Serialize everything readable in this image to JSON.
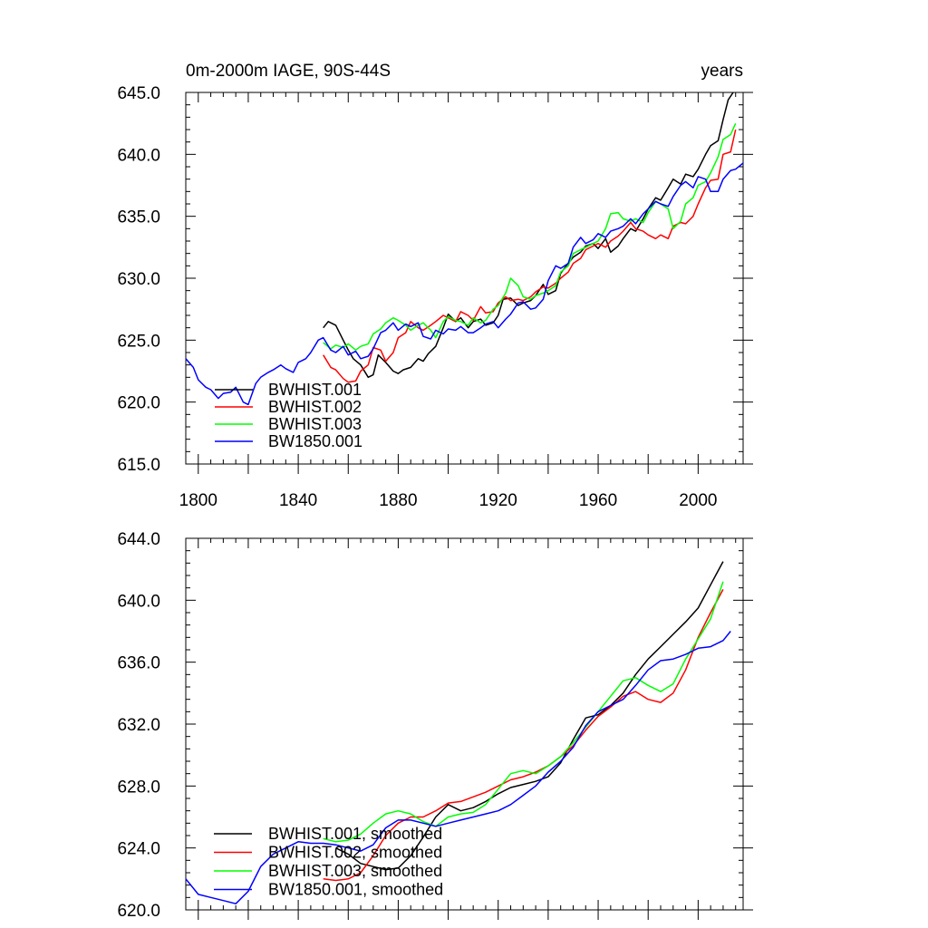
{
  "chart_data": [
    {
      "type": "line",
      "title": "0m-2000m IAGE, 90S-44S",
      "units": "years",
      "xlabel": "",
      "ylabel": "",
      "xlim": [
        1795,
        2018
      ],
      "ylim": [
        615.0,
        645.0
      ],
      "grid": false,
      "legend_position": "bottom-left",
      "x_ticks": [
        1800,
        1840,
        1880,
        1920,
        1960,
        2000
      ],
      "y_ticks": [
        615.0,
        620.0,
        625.0,
        630.0,
        635.0,
        640.0,
        645.0
      ],
      "x_tick_labels": [
        "1800",
        "1840",
        "1880",
        "1920",
        "1960",
        "2000"
      ],
      "y_tick_labels": [
        "615.0",
        "620.0",
        "625.0",
        "630.0",
        "635.0",
        "640.0",
        "645.0"
      ],
      "series": [
        {
          "name": "BWHIST.001",
          "color": "#000000",
          "x": [
            1850,
            1852,
            1855,
            1858,
            1860,
            1862,
            1865,
            1868,
            1870,
            1872,
            1875,
            1878,
            1880,
            1882,
            1885,
            1888,
            1890,
            1892,
            1895,
            1898,
            1900,
            1903,
            1905,
            1908,
            1910,
            1913,
            1915,
            1918,
            1920,
            1922,
            1925,
            1928,
            1930,
            1933,
            1935,
            1938,
            1940,
            1943,
            1945,
            1948,
            1950,
            1953,
            1955,
            1958,
            1960,
            1963,
            1965,
            1968,
            1970,
            1973,
            1975,
            1978,
            1980,
            1983,
            1985,
            1988,
            1990,
            1993,
            1995,
            1998,
            2000,
            2003,
            2005,
            2008,
            2010,
            2012,
            2014
          ],
          "y": [
            626.0,
            626.5,
            626.2,
            625.0,
            624.2,
            623.5,
            623.0,
            622.0,
            622.2,
            623.8,
            623.2,
            622.5,
            622.3,
            622.6,
            622.8,
            623.5,
            623.3,
            623.9,
            624.5,
            626.0,
            627.1,
            626.5,
            626.8,
            626.0,
            626.5,
            626.7,
            626.2,
            626.4,
            627.0,
            628.3,
            628.4,
            627.8,
            628.0,
            628.2,
            628.6,
            629.5,
            628.7,
            629.0,
            630.4,
            631.2,
            631.7,
            632.1,
            632.6,
            632.8,
            632.4,
            633.2,
            632.1,
            632.6,
            633.2,
            634.0,
            633.8,
            634.8,
            635.6,
            636.5,
            636.3,
            637.3,
            638.0,
            637.6,
            638.4,
            638.2,
            638.8,
            640.0,
            640.7,
            641.1,
            642.8,
            644.4,
            645.0
          ]
        },
        {
          "name": "BWHIST.002",
          "color": "#ff0000",
          "x": [
            1850,
            1853,
            1855,
            1858,
            1860,
            1863,
            1865,
            1868,
            1870,
            1873,
            1875,
            1878,
            1880,
            1883,
            1885,
            1888,
            1890,
            1893,
            1895,
            1898,
            1900,
            1903,
            1905,
            1908,
            1910,
            1913,
            1915,
            1918,
            1920,
            1923,
            1925,
            1928,
            1930,
            1933,
            1935,
            1938,
            1940,
            1943,
            1945,
            1948,
            1950,
            1953,
            1955,
            1958,
            1960,
            1963,
            1965,
            1968,
            1970,
            1973,
            1975,
            1978,
            1980,
            1983,
            1985,
            1988,
            1990,
            1993,
            1995,
            1998,
            2000,
            2003,
            2005,
            2008,
            2010,
            2013,
            2015
          ],
          "y": [
            623.8,
            622.8,
            622.6,
            621.9,
            621.6,
            621.7,
            622.5,
            623.0,
            624.4,
            624.2,
            623.3,
            624.0,
            625.2,
            625.6,
            626.5,
            626.0,
            625.8,
            626.2,
            626.5,
            627.0,
            626.8,
            626.5,
            627.3,
            627.0,
            626.6,
            627.7,
            627.2,
            627.3,
            628.0,
            628.5,
            628.2,
            628.3,
            628.2,
            628.5,
            628.9,
            629.3,
            629.2,
            629.6,
            630.0,
            630.5,
            631.2,
            631.6,
            632.3,
            632.6,
            632.8,
            632.5,
            633.0,
            633.4,
            633.8,
            634.5,
            634.0,
            633.8,
            633.5,
            633.2,
            633.5,
            633.2,
            634.2,
            634.5,
            634.4,
            635.0,
            636.0,
            637.3,
            637.9,
            638.0,
            640.0,
            640.2,
            642.0
          ]
        },
        {
          "name": "BWHIST.003",
          "color": "#00ff00",
          "x": [
            1850,
            1853,
            1855,
            1858,
            1860,
            1863,
            1865,
            1868,
            1870,
            1873,
            1875,
            1878,
            1880,
            1883,
            1885,
            1888,
            1890,
            1893,
            1895,
            1898,
            1900,
            1903,
            1905,
            1908,
            1910,
            1913,
            1915,
            1918,
            1920,
            1923,
            1925,
            1928,
            1930,
            1933,
            1935,
            1938,
            1940,
            1943,
            1945,
            1948,
            1950,
            1953,
            1955,
            1958,
            1960,
            1963,
            1965,
            1968,
            1970,
            1973,
            1975,
            1978,
            1980,
            1983,
            1985,
            1988,
            1990,
            1993,
            1995,
            1998,
            2000,
            2003,
            2005,
            2008,
            2010,
            2013,
            2015
          ],
          "y": [
            624.8,
            624.3,
            624.6,
            624.4,
            624.7,
            624.2,
            624.5,
            624.7,
            625.5,
            625.9,
            626.4,
            626.8,
            626.6,
            626.2,
            625.8,
            626.2,
            626.4,
            625.8,
            625.2,
            626.5,
            626.9,
            626.6,
            626.5,
            626.2,
            626.8,
            626.4,
            626.6,
            627.5,
            627.8,
            628.8,
            630.0,
            629.4,
            628.5,
            628.3,
            628.6,
            628.8,
            629.0,
            629.4,
            630.5,
            631.0,
            632.0,
            632.3,
            632.5,
            632.8,
            633.0,
            634.0,
            635.2,
            635.3,
            634.8,
            634.6,
            634.8,
            634.5,
            635.3,
            636.2,
            636.0,
            635.6,
            634.0,
            634.6,
            636.0,
            636.5,
            637.5,
            637.8,
            638.5,
            639.8,
            641.2,
            641.6,
            642.5
          ]
        },
        {
          "name": "BW1850.001",
          "color": "#0000ff",
          "x": [
            1795,
            1798,
            1800,
            1803,
            1805,
            1808,
            1810,
            1813,
            1815,
            1818,
            1820,
            1823,
            1825,
            1828,
            1830,
            1833,
            1835,
            1838,
            1840,
            1843,
            1845,
            1848,
            1850,
            1853,
            1855,
            1858,
            1860,
            1863,
            1865,
            1868,
            1870,
            1873,
            1875,
            1878,
            1880,
            1883,
            1885,
            1888,
            1890,
            1893,
            1895,
            1898,
            1900,
            1903,
            1905,
            1908,
            1910,
            1913,
            1915,
            1918,
            1920,
            1923,
            1925,
            1928,
            1930,
            1933,
            1935,
            1938,
            1940,
            1943,
            1945,
            1948,
            1950,
            1953,
            1955,
            1958,
            1960,
            1963,
            1965,
            1968,
            1970,
            1973,
            1975,
            1978,
            1980,
            1983,
            1985,
            1988,
            1990,
            1993,
            1995,
            1998,
            2000,
            2003,
            2005,
            2008,
            2010,
            2013,
            2015,
            2018
          ],
          "y": [
            623.5,
            622.8,
            621.8,
            621.2,
            621.0,
            620.3,
            620.7,
            620.8,
            621.2,
            620.0,
            619.8,
            621.5,
            622.0,
            622.4,
            622.6,
            623.0,
            622.7,
            622.4,
            623.2,
            623.5,
            624.0,
            625.0,
            625.2,
            624.2,
            624.0,
            624.5,
            623.8,
            624.1,
            623.5,
            623.7,
            624.3,
            625.6,
            625.8,
            626.4,
            625.8,
            626.3,
            626.1,
            626.4,
            625.3,
            625.1,
            625.8,
            625.5,
            625.9,
            625.8,
            626.1,
            625.6,
            625.6,
            626.0,
            626.3,
            626.5,
            626.0,
            626.7,
            627.1,
            628.0,
            628.1,
            627.5,
            627.6,
            628.3,
            629.8,
            631.0,
            630.8,
            631.2,
            632.5,
            633.3,
            632.8,
            633.1,
            633.6,
            633.3,
            633.8,
            634.0,
            634.2,
            634.8,
            634.4,
            635.2,
            635.6,
            636.2,
            636.0,
            635.8,
            636.6,
            637.5,
            637.8,
            637.3,
            638.2,
            638.0,
            637.0,
            637.0,
            638.0,
            638.7,
            638.8,
            639.3
          ]
        }
      ]
    },
    {
      "type": "line",
      "title": "",
      "xlabel": "",
      "ylabel": "",
      "xlim": [
        1795,
        2018
      ],
      "ylim": [
        620.0,
        644.0
      ],
      "grid": false,
      "legend_position": "bottom-left",
      "x_ticks": [
        1800,
        1840,
        1880,
        1920,
        1960,
        2000
      ],
      "y_ticks": [
        620.0,
        624.0,
        628.0,
        632.0,
        636.0,
        640.0,
        644.0
      ],
      "y_tick_labels": [
        "620.0",
        "624.0",
        "628.0",
        "632.0",
        "636.0",
        "640.0",
        "644.0"
      ],
      "series": [
        {
          "name": "BWHIST.001, smoothed",
          "color": "#000000",
          "x": [
            1855,
            1860,
            1865,
            1870,
            1875,
            1880,
            1885,
            1890,
            1895,
            1900,
            1905,
            1910,
            1915,
            1920,
            1925,
            1930,
            1935,
            1940,
            1945,
            1950,
            1955,
            1960,
            1965,
            1970,
            1975,
            1980,
            1985,
            1990,
            1995,
            2000,
            2005,
            2010
          ],
          "y": [
            624.0,
            623.6,
            623.0,
            622.8,
            622.6,
            622.7,
            623.5,
            624.7,
            626.0,
            626.8,
            626.4,
            626.6,
            627.0,
            627.5,
            627.9,
            628.1,
            628.3,
            628.6,
            629.5,
            631.0,
            632.4,
            632.6,
            633.2,
            634.0,
            635.2,
            636.2,
            637.0,
            637.8,
            638.6,
            639.5,
            641.0,
            642.5
          ]
        },
        {
          "name": "BWHIST.002, smoothed",
          "color": "#ff0000",
          "x": [
            1850,
            1855,
            1860,
            1865,
            1870,
            1875,
            1880,
            1885,
            1890,
            1895,
            1900,
            1905,
            1910,
            1915,
            1920,
            1925,
            1930,
            1935,
            1940,
            1945,
            1950,
            1955,
            1960,
            1965,
            1970,
            1975,
            1980,
            1985,
            1990,
            1995,
            2000,
            2005,
            2010
          ],
          "y": [
            622.0,
            621.9,
            622.0,
            622.4,
            623.5,
            624.8,
            625.6,
            626.0,
            626.0,
            626.4,
            626.9,
            627.0,
            627.3,
            627.6,
            628.0,
            628.4,
            628.6,
            628.9,
            629.3,
            629.9,
            630.6,
            631.6,
            632.5,
            633.1,
            633.8,
            634.1,
            633.6,
            633.4,
            634.0,
            635.5,
            637.6,
            639.2,
            640.7
          ]
        },
        {
          "name": "BWHIST.003, smoothed",
          "color": "#00ff00",
          "x": [
            1850,
            1855,
            1860,
            1865,
            1870,
            1875,
            1880,
            1885,
            1890,
            1895,
            1900,
            1905,
            1910,
            1915,
            1920,
            1925,
            1930,
            1935,
            1940,
            1945,
            1950,
            1955,
            1960,
            1965,
            1970,
            1975,
            1980,
            1985,
            1990,
            1995,
            2000,
            2005,
            2010
          ],
          "y": [
            624.6,
            624.4,
            624.5,
            624.9,
            625.6,
            626.2,
            626.4,
            626.2,
            625.7,
            625.4,
            626.0,
            626.2,
            626.3,
            626.8,
            627.8,
            628.8,
            629.0,
            628.8,
            629.3,
            629.9,
            630.8,
            631.8,
            632.8,
            633.8,
            634.8,
            635.0,
            634.5,
            634.1,
            634.6,
            636.2,
            637.5,
            638.8,
            641.2
          ]
        },
        {
          "name": "BW1850.001, smoothed",
          "color": "#0000ff",
          "x": [
            1795,
            1800,
            1805,
            1810,
            1815,
            1820,
            1825,
            1830,
            1835,
            1840,
            1845,
            1850,
            1855,
            1860,
            1865,
            1870,
            1875,
            1880,
            1885,
            1890,
            1895,
            1900,
            1905,
            1910,
            1915,
            1920,
            1925,
            1930,
            1935,
            1940,
            1945,
            1950,
            1955,
            1960,
            1965,
            1970,
            1975,
            1980,
            1985,
            1990,
            1995,
            2000,
            2005,
            2010,
            2013
          ],
          "y": [
            622.0,
            621.0,
            620.8,
            620.6,
            620.4,
            621.2,
            622.8,
            623.6,
            624.0,
            624.4,
            624.3,
            624.3,
            624.2,
            624.0,
            623.8,
            624.2,
            625.3,
            625.8,
            625.8,
            625.6,
            625.4,
            625.6,
            625.8,
            626.0,
            626.2,
            626.4,
            626.8,
            627.4,
            628.0,
            628.9,
            629.6,
            630.5,
            631.9,
            632.8,
            633.2,
            633.6,
            634.5,
            635.5,
            636.1,
            636.2,
            636.5,
            636.9,
            637.0,
            637.4,
            638.0
          ]
        }
      ]
    }
  ]
}
